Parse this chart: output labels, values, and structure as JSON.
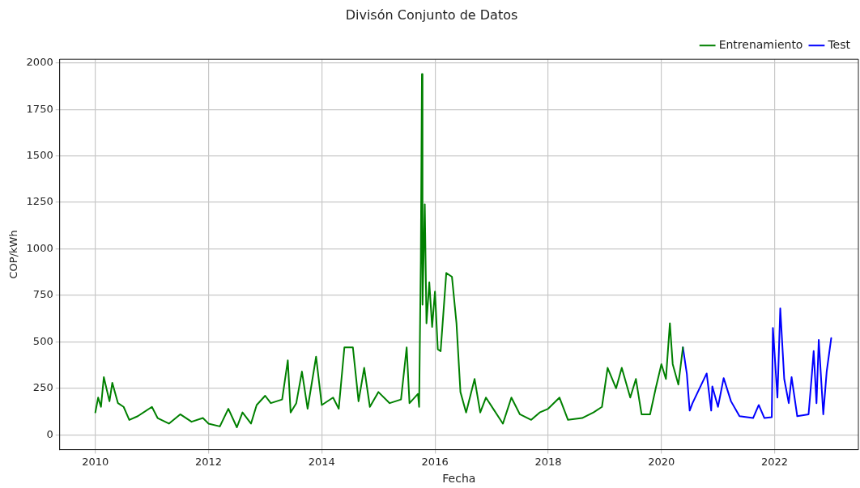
{
  "chart_data": {
    "type": "line",
    "title": "Divisón Conjunto de Datos",
    "xlabel": "Fecha",
    "ylabel": "COP/kWh",
    "xlim": [
      2009.37,
      2023.48
    ],
    "xticks": [
      2010,
      2012,
      2014,
      2016,
      2018,
      2020,
      2022
    ],
    "ylim": [
      -80,
      2020
    ],
    "yticks": [
      0,
      250,
      500,
      750,
      1000,
      1250,
      1500,
      1750,
      2000
    ],
    "grid": true,
    "legend": "top right",
    "marker": "none",
    "line_style": "solid",
    "series": [
      {
        "name": "Entrenamiento",
        "color": "#008000",
        "x": [
          2010.0,
          2010.05,
          2010.1,
          2010.15,
          2010.25,
          2010.3,
          2010.4,
          2010.5,
          2010.6,
          2010.75,
          2011.0,
          2011.1,
          2011.3,
          2011.5,
          2011.7,
          2011.9,
          2012.0,
          2012.2,
          2012.35,
          2012.5,
          2012.6,
          2012.75,
          2012.85,
          2013.0,
          2013.1,
          2013.3,
          2013.4,
          2013.45,
          2013.55,
          2013.65,
          2013.75,
          2013.9,
          2014.0,
          2014.2,
          2014.3,
          2014.4,
          2014.55,
          2014.65,
          2014.75,
          2014.85,
          2015.0,
          2015.2,
          2015.4,
          2015.5,
          2015.55,
          2015.7,
          2015.72,
          2015.75,
          2015.77,
          2015.78,
          2015.82,
          2015.85,
          2015.9,
          2015.95,
          2016.0,
          2016.05,
          2016.1,
          2016.2,
          2016.3,
          2016.38,
          2016.45,
          2016.55,
          2016.7,
          2016.8,
          2016.9,
          2017.05,
          2017.2,
          2017.35,
          2017.5,
          2017.7,
          2017.85,
          2018.0,
          2018.2,
          2018.35,
          2018.6,
          2018.8,
          2018.95,
          2019.05,
          2019.2,
          2019.3,
          2019.45,
          2019.55,
          2019.65,
          2019.8,
          2019.9,
          2020.0,
          2020.08,
          2020.15,
          2020.2,
          2020.3,
          2020.38
        ],
        "values": [
          120,
          200,
          150,
          310,
          180,
          280,
          170,
          150,
          80,
          100,
          150,
          90,
          60,
          110,
          70,
          90,
          60,
          45,
          140,
          40,
          120,
          60,
          160,
          210,
          170,
          190,
          400,
          120,
          170,
          340,
          140,
          420,
          160,
          200,
          140,
          470,
          470,
          180,
          360,
          150,
          230,
          170,
          190,
          470,
          170,
          220,
          150,
          940,
          1940,
          700,
          1240,
          600,
          820,
          580,
          770,
          460,
          450,
          870,
          850,
          600,
          230,
          120,
          300,
          120,
          200,
          130,
          60,
          200,
          110,
          80,
          120,
          140,
          200,
          80,
          90,
          120,
          150,
          360,
          250,
          360,
          200,
          300,
          110,
          110,
          250,
          380,
          300,
          600,
          380,
          270,
          470
        ]
      },
      {
        "name": "Test",
        "color": "#0000ff",
        "x": [
          2020.38,
          2020.45,
          2020.5,
          2020.55,
          2020.8,
          2020.88,
          2020.9,
          2021.0,
          2021.1,
          2021.23,
          2021.38,
          2021.62,
          2021.72,
          2021.82,
          2021.95,
          2021.97,
          2022.05,
          2022.1,
          2022.17,
          2022.25,
          2022.3,
          2022.4,
          2022.6,
          2022.66,
          2022.69,
          2022.74,
          2022.78,
          2022.86,
          2022.92,
          2023.0
        ],
        "values": [
          470,
          327,
          130,
          170,
          330,
          130,
          260,
          150,
          305,
          180,
          100,
          90,
          160,
          90,
          95,
          575,
          200,
          680,
          300,
          170,
          310,
          100,
          110,
          330,
          450,
          170,
          510,
          110,
          340,
          520
        ]
      }
    ]
  }
}
